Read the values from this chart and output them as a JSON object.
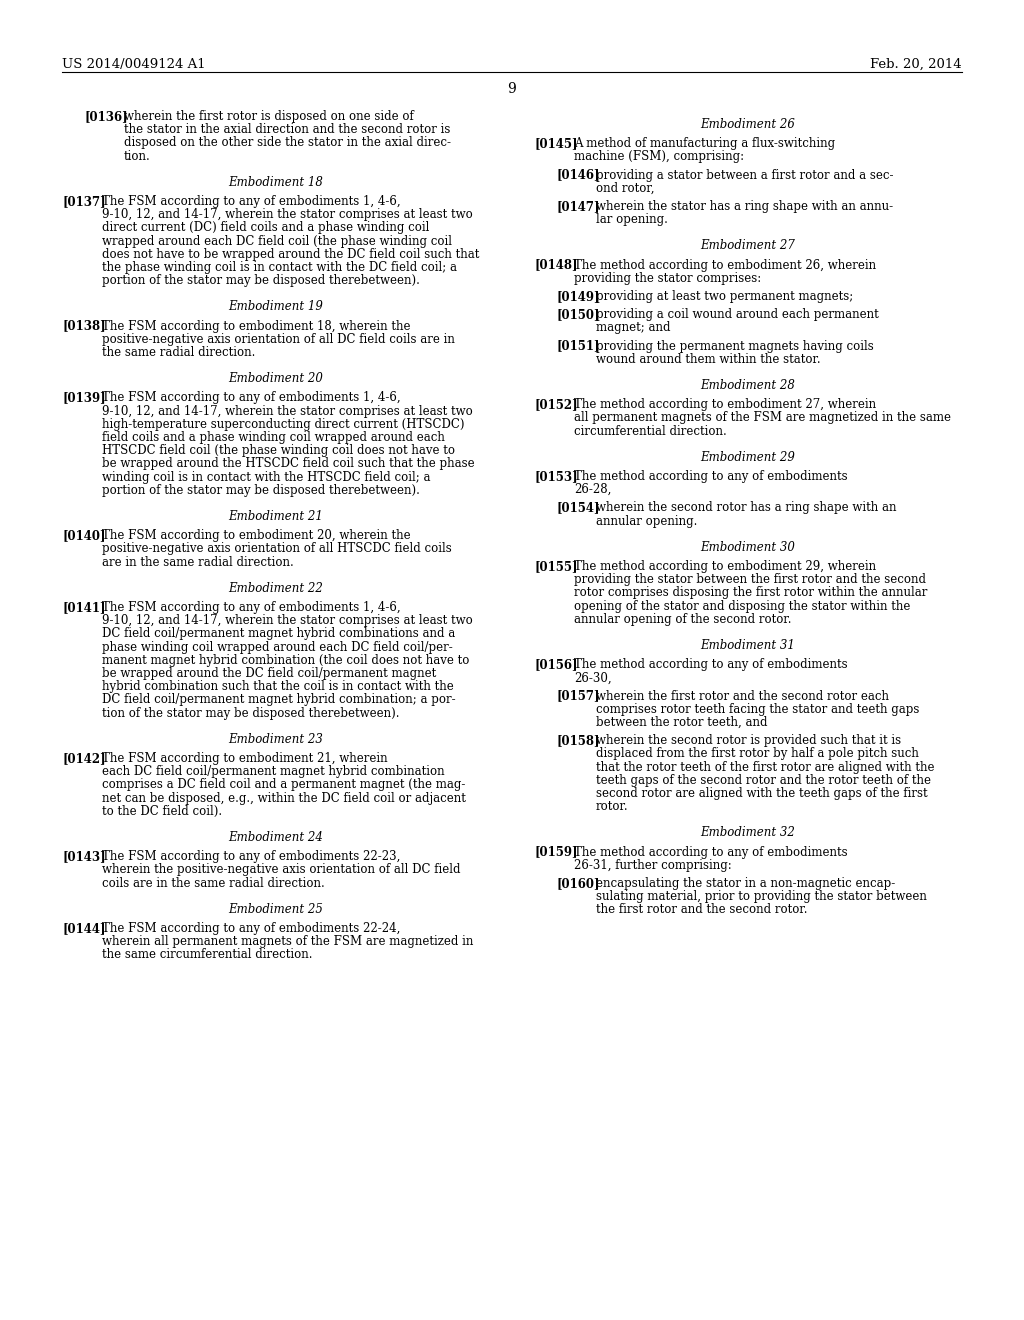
{
  "bg_color": "#ffffff",
  "header_left": "US 2014/0049124 A1",
  "header_right": "Feb. 20, 2014",
  "page_number": "9",
  "left_column": [
    {
      "type": "para_indent",
      "tag": "[0136]",
      "text": "wherein the first rotor is disposed on one side of\nthe stator in the axial direction and the second rotor is\ndisposed on the other side the stator in the axial direc-\ntion."
    },
    {
      "type": "heading",
      "text": "Embodiment 18"
    },
    {
      "type": "para",
      "tag": "[0137]",
      "text": "The FSM according to any of embodiments 1, 4-6,\n9-10, 12, and 14-17, wherein the stator comprises at least two\ndirect current (DC) field coils and a phase winding coil\nwrapped around each DC field coil (the phase winding coil\ndoes not have to be wrapped around the DC field coil such that\nthe phase winding coil is in contact with the DC field coil; a\nportion of the stator may be disposed therebetween)."
    },
    {
      "type": "heading",
      "text": "Embodiment 19"
    },
    {
      "type": "para",
      "tag": "[0138]",
      "text": "The FSM according to embodiment 18, wherein the\npositive-negative axis orientation of all DC field coils are in\nthe same radial direction."
    },
    {
      "type": "heading",
      "text": "Embodiment 20"
    },
    {
      "type": "para",
      "tag": "[0139]",
      "text": "The FSM according to any of embodiments 1, 4-6,\n9-10, 12, and 14-17, wherein the stator comprises at least two\nhigh-temperature superconducting direct current (HTSCDC)\nfield coils and a phase winding coil wrapped around each\nHTSCDC field coil (the phase winding coil does not have to\nbe wrapped around the HTSCDC field coil such that the phase\nwinding coil is in contact with the HTSCDC field coil; a\nportion of the stator may be disposed therebetween)."
    },
    {
      "type": "heading",
      "text": "Embodiment 21"
    },
    {
      "type": "para",
      "tag": "[0140]",
      "text": "The FSM according to embodiment 20, wherein the\npositive-negative axis orientation of all HTSCDC field coils\nare in the same radial direction."
    },
    {
      "type": "heading",
      "text": "Embodiment 22"
    },
    {
      "type": "para",
      "tag": "[0141]",
      "text": "The FSM according to any of embodiments 1, 4-6,\n9-10, 12, and 14-17, wherein the stator comprises at least two\nDC field coil/permanent magnet hybrid combinations and a\nphase winding coil wrapped around each DC field coil/per-\nmanent magnet hybrid combination (the coil does not have to\nbe wrapped around the DC field coil/permanent magnet\nhybrid combination such that the coil is in contact with the\nDC field coil/permanent magnet hybrid combination; a por-\ntion of the stator may be disposed therebetween)."
    },
    {
      "type": "heading",
      "text": "Embodiment 23"
    },
    {
      "type": "para",
      "tag": "[0142]",
      "text": "The FSM according to embodiment 21, wherein\neach DC field coil/permanent magnet hybrid combination\ncomprises a DC field coil and a permanent magnet (the mag-\nnet can be disposed, e.g., within the DC field coil or adjacent\nto the DC field coil)."
    },
    {
      "type": "heading",
      "text": "Embodiment 24"
    },
    {
      "type": "para",
      "tag": "[0143]",
      "text": "The FSM according to any of embodiments 22-23,\nwherein the positive-negative axis orientation of all DC field\ncoils are in the same radial direction."
    },
    {
      "type": "heading",
      "text": "Embodiment 25"
    },
    {
      "type": "para",
      "tag": "[0144]",
      "text": "The FSM according to any of embodiments 22-24,\nwherein all permanent magnets of the FSM are magnetized in\nthe same circumferential direction."
    }
  ],
  "right_column": [
    {
      "type": "heading",
      "text": "Embodiment 26"
    },
    {
      "type": "para",
      "tag": "[0145]",
      "text": "A method of manufacturing a flux-switching\nmachine (FSM), comprising:"
    },
    {
      "type": "para_indent",
      "tag": "[0146]",
      "text": "providing a stator between a first rotor and a sec-\nond rotor,"
    },
    {
      "type": "para_indent",
      "tag": "[0147]",
      "text": "wherein the stator has a ring shape with an annu-\nlar opening."
    },
    {
      "type": "heading",
      "text": "Embodiment 27"
    },
    {
      "type": "para",
      "tag": "[0148]",
      "text": "The method according to embodiment 26, wherein\nproviding the stator comprises:"
    },
    {
      "type": "para_indent",
      "tag": "[0149]",
      "text": "providing at least two permanent magnets;"
    },
    {
      "type": "para_indent",
      "tag": "[0150]",
      "text": "providing a coil wound around each permanent\nmagnet; and"
    },
    {
      "type": "para_indent",
      "tag": "[0151]",
      "text": "providing the permanent magnets having coils\nwound around them within the stator."
    },
    {
      "type": "heading",
      "text": "Embodiment 28"
    },
    {
      "type": "para",
      "tag": "[0152]",
      "text": "The method according to embodiment 27, wherein\nall permanent magnets of the FSM are magnetized in the same\ncircumferential direction."
    },
    {
      "type": "heading",
      "text": "Embodiment 29"
    },
    {
      "type": "para",
      "tag": "[0153]",
      "text": "The method according to any of embodiments\n26-28,"
    },
    {
      "type": "para_indent",
      "tag": "[0154]",
      "text": "wherein the second rotor has a ring shape with an\nannular opening."
    },
    {
      "type": "heading",
      "text": "Embodiment 30"
    },
    {
      "type": "para",
      "tag": "[0155]",
      "text": "The method according to embodiment 29, wherein\nproviding the stator between the first rotor and the second\nrotor comprises disposing the first rotor within the annular\nopening of the stator and disposing the stator within the\nannular opening of the second rotor."
    },
    {
      "type": "heading",
      "text": "Embodiment 31"
    },
    {
      "type": "para",
      "tag": "[0156]",
      "text": "The method according to any of embodiments\n26-30,"
    },
    {
      "type": "para_indent",
      "tag": "[0157]",
      "text": "wherein the first rotor and the second rotor each\ncomprises rotor teeth facing the stator and teeth gaps\nbetween the rotor teeth, and"
    },
    {
      "type": "para_indent",
      "tag": "[0158]",
      "text": "wherein the second rotor is provided such that it is\ndisplaced from the first rotor by half a pole pitch such\nthat the rotor teeth of the first rotor are aligned with the\nteeth gaps of the second rotor and the rotor teeth of the\nsecond rotor are aligned with the teeth gaps of the first\nrotor."
    },
    {
      "type": "heading",
      "text": "Embodiment 32"
    },
    {
      "type": "para",
      "tag": "[0159]",
      "text": "The method according to any of embodiments\n26-31, further comprising:"
    },
    {
      "type": "para_indent",
      "tag": "[0160]",
      "text": "encapsulating the stator in a non-magnetic encap-\nsulating material, prior to providing the stator between\nthe first rotor and the second rotor."
    }
  ]
}
